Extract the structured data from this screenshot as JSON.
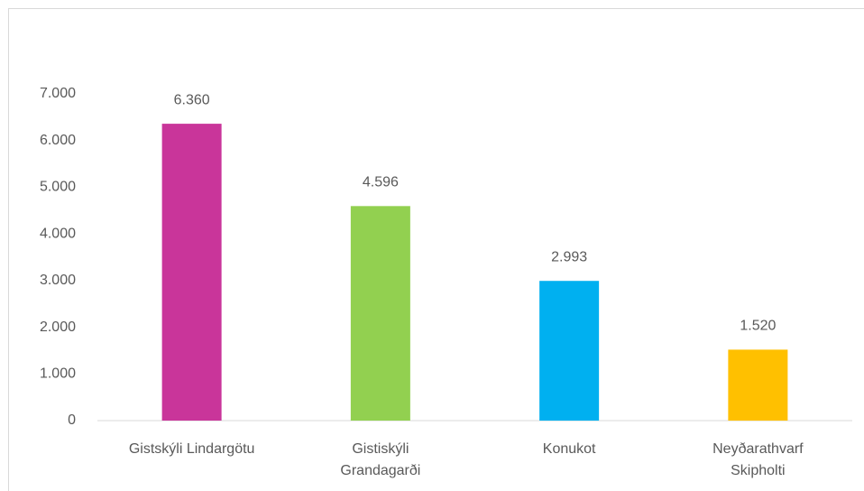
{
  "chart_data": {
    "type": "bar",
    "categories": [
      "Gistskýli Lindargötu",
      "Gistiskýli\nGrandagarði",
      "Konukot",
      "Neyðarathvarf\nSkipholti"
    ],
    "values": [
      6360,
      4596,
      2993,
      1520
    ],
    "value_labels": [
      "6.360",
      "4.596",
      "2.993",
      "1.520"
    ],
    "colors": [
      "#c9359a",
      "#92d050",
      "#00b0f0",
      "#ffc000"
    ],
    "ylim": [
      0,
      7000
    ],
    "yticks": [
      0,
      {
        "value": 1000,
        "label": "1.000"
      },
      {
        "value": 2000,
        "label": "2.000"
      },
      {
        "value": 3000,
        "label": "3.000"
      },
      {
        "value": 4000,
        "label": "4.000"
      },
      {
        "value": 5000,
        "label": "5.000"
      },
      {
        "value": 6000,
        "label": "6.000"
      },
      {
        "value": 7000,
        "label": "7.000"
      }
    ],
    "grid": false
  }
}
